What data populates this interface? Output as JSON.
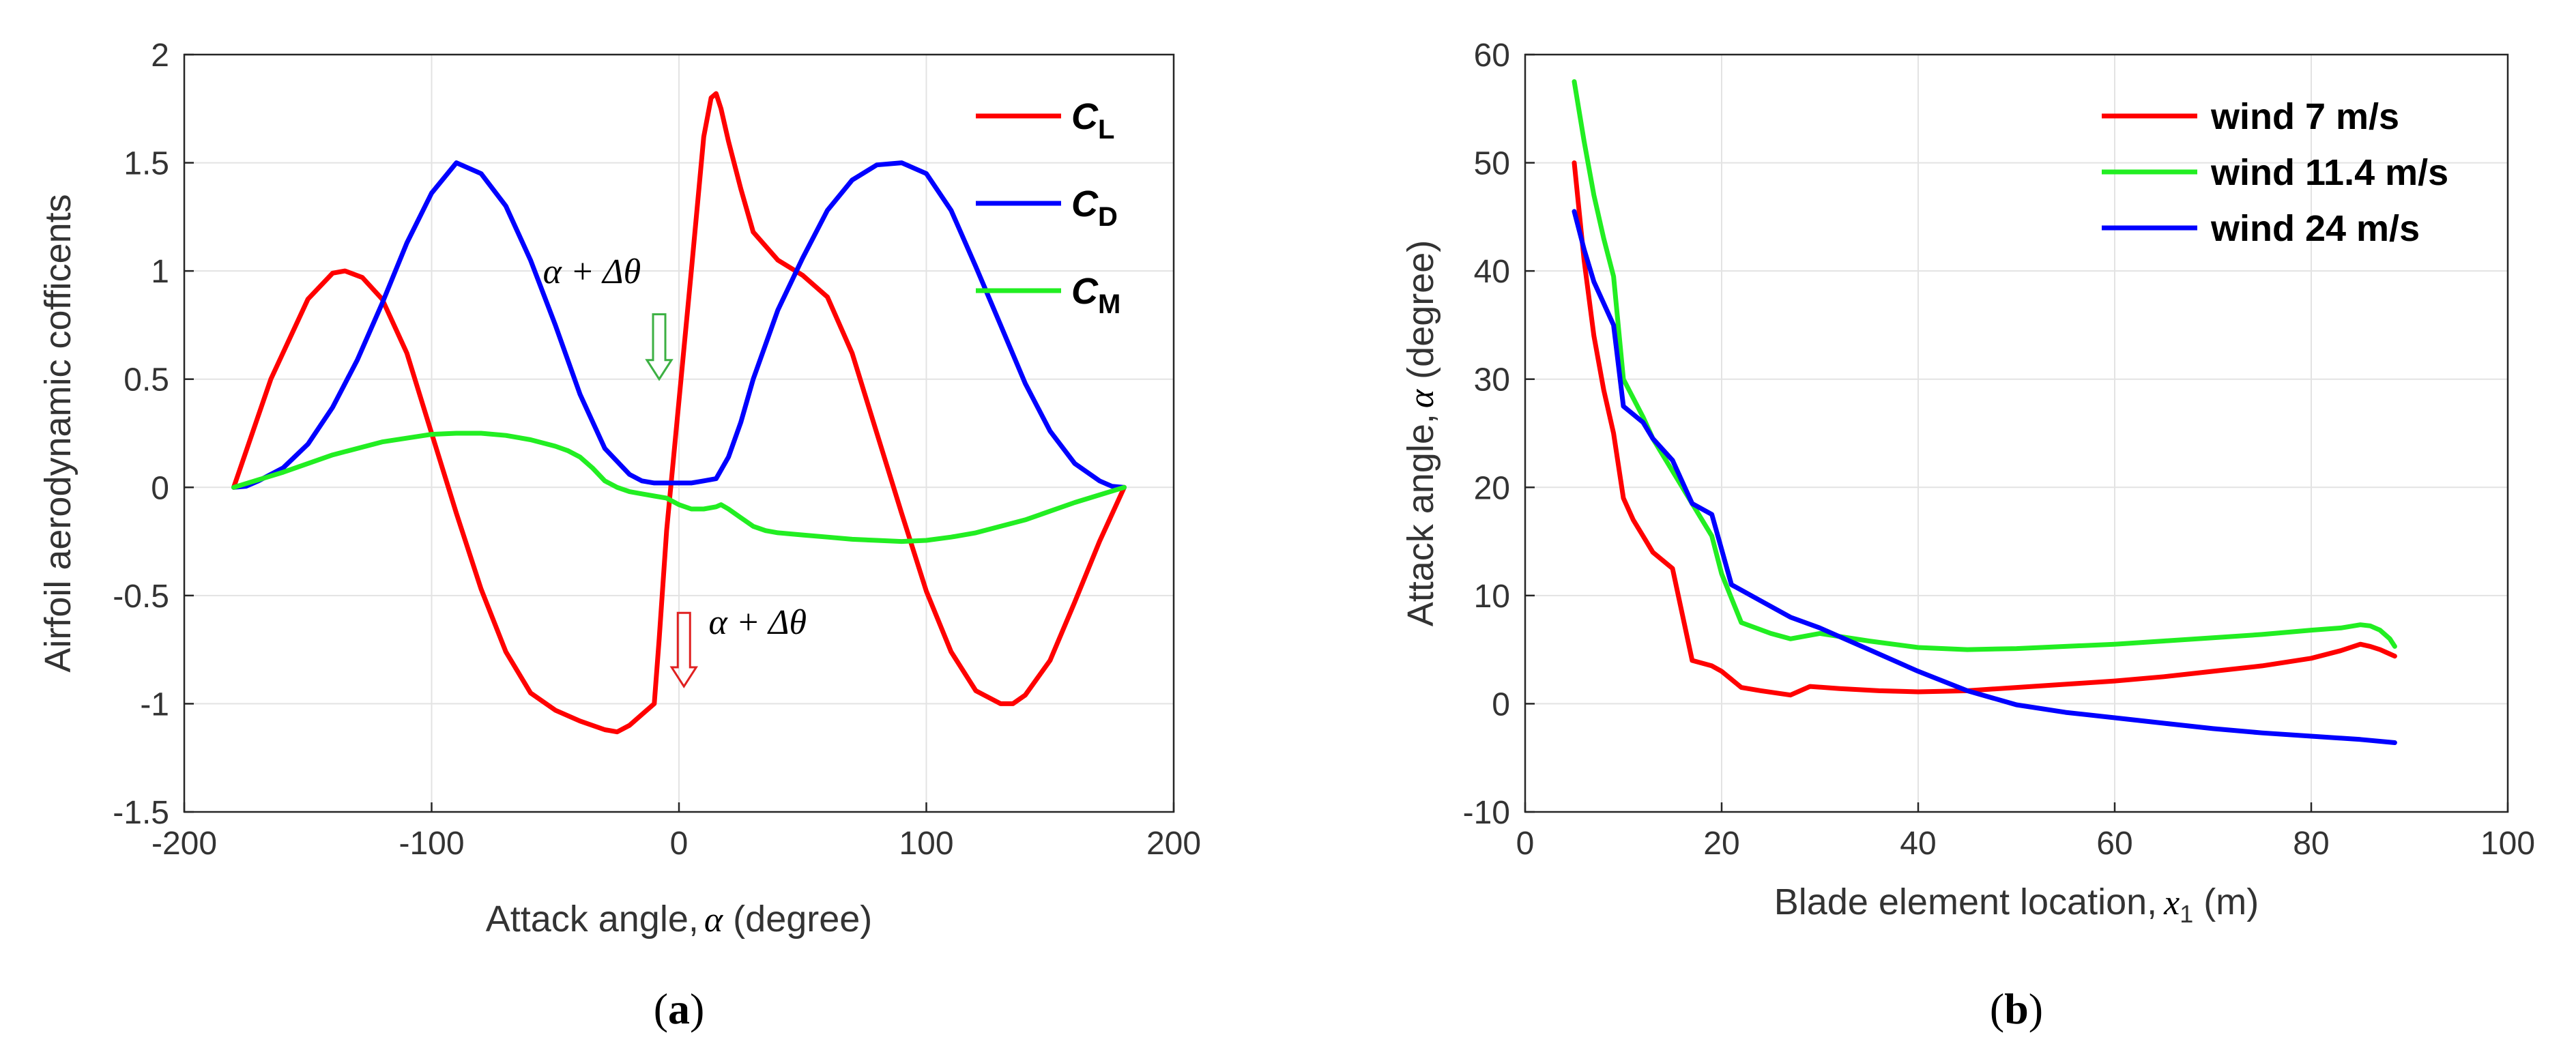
{
  "chart_data": [
    {
      "type": "line",
      "panel_label": "a",
      "xlabel_prefix": "Attack angle,",
      "xlabel_symbol": "α",
      "xlabel_suffix": " (degree)",
      "ylabel": "Airfoil aerodynamic cofficents",
      "xlim": [
        -200,
        200
      ],
      "ylim": [
        -1.5,
        2
      ],
      "xticks": [
        -200,
        -100,
        0,
        100,
        200
      ],
      "xtick_labels": [
        "-200",
        "-100",
        "0",
        "100",
        "200"
      ],
      "yticks": [
        -1.5,
        -1,
        -0.5,
        0,
        0.5,
        1,
        1.5,
        2
      ],
      "ytick_labels": [
        "-1.5",
        "-1",
        "-0.5",
        "0",
        "0.5",
        "1",
        "1.5",
        "2"
      ],
      "grid": true,
      "legend_position": "top-right",
      "annotations": [
        {
          "text": "α + Δθ",
          "x": -55,
          "y": 1.0,
          "arrow_color": "#3cb043",
          "arrow_x": -8,
          "arrow_from": 0.8,
          "arrow_to": 0.5
        },
        {
          "text": "α + Δθ",
          "x": 12,
          "y": -0.62,
          "arrow_color": "#e02020",
          "arrow_x": 2,
          "arrow_from": -0.58,
          "arrow_to": -0.92
        }
      ],
      "series": [
        {
          "name": "C",
          "subscript": "L",
          "color": "#ff0000",
          "x": [
            -180,
            -165,
            -150,
            -140,
            -135,
            -128,
            -120,
            -110,
            -100,
            -90,
            -80,
            -70,
            -60,
            -50,
            -40,
            -30,
            -25,
            -20,
            -15,
            -10,
            -8,
            -5,
            0,
            5,
            10,
            13,
            15,
            17,
            20,
            25,
            30,
            40,
            50,
            60,
            70,
            80,
            90,
            100,
            110,
            120,
            130,
            135,
            140,
            150,
            160,
            170,
            180
          ],
          "y": [
            0,
            0.5,
            0.87,
            0.99,
            1.0,
            0.97,
            0.87,
            0.62,
            0.25,
            -0.12,
            -0.47,
            -0.76,
            -0.95,
            -1.03,
            -1.08,
            -1.12,
            -1.13,
            -1.1,
            -1.05,
            -1.0,
            -0.7,
            -0.2,
            0.4,
            1.0,
            1.62,
            1.8,
            1.82,
            1.75,
            1.6,
            1.38,
            1.18,
            1.05,
            0.98,
            0.88,
            0.62,
            0.25,
            -0.12,
            -0.48,
            -0.76,
            -0.94,
            -1.0,
            -1.0,
            -0.96,
            -0.8,
            -0.53,
            -0.25,
            0
          ]
        },
        {
          "name": "C",
          "subscript": "D",
          "color": "#0000ff",
          "x": [
            -180,
            -175,
            -170,
            -160,
            -150,
            -140,
            -130,
            -120,
            -110,
            -100,
            -90,
            -80,
            -70,
            -60,
            -50,
            -40,
            -30,
            -20,
            -15,
            -10,
            -5,
            0,
            5,
            10,
            15,
            20,
            25,
            30,
            40,
            50,
            60,
            70,
            80,
            90,
            100,
            110,
            120,
            130,
            140,
            150,
            160,
            170,
            175,
            180
          ],
          "y": [
            0,
            0.005,
            0.03,
            0.09,
            0.2,
            0.37,
            0.59,
            0.85,
            1.13,
            1.36,
            1.5,
            1.45,
            1.3,
            1.05,
            0.75,
            0.43,
            0.18,
            0.06,
            0.03,
            0.02,
            0.02,
            0.02,
            0.02,
            0.03,
            0.04,
            0.14,
            0.3,
            0.5,
            0.82,
            1.06,
            1.28,
            1.42,
            1.49,
            1.5,
            1.45,
            1.28,
            1.02,
            0.75,
            0.48,
            0.26,
            0.11,
            0.03,
            0.005,
            0
          ]
        },
        {
          "name": "C",
          "subscript": "M",
          "color": "#22ee22",
          "x": [
            -180,
            -160,
            -140,
            -120,
            -100,
            -90,
            -80,
            -70,
            -60,
            -50,
            -45,
            -40,
            -35,
            -30,
            -25,
            -20,
            -15,
            -10,
            -5,
            0,
            5,
            10,
            15,
            17,
            20,
            25,
            30,
            35,
            40,
            50,
            60,
            70,
            80,
            90,
            100,
            110,
            120,
            130,
            140,
            150,
            160,
            170,
            180
          ],
          "y": [
            0,
            0.07,
            0.15,
            0.21,
            0.245,
            0.25,
            0.25,
            0.24,
            0.22,
            0.19,
            0.17,
            0.14,
            0.09,
            0.03,
            0.0,
            -0.02,
            -0.03,
            -0.04,
            -0.05,
            -0.08,
            -0.1,
            -0.1,
            -0.09,
            -0.08,
            -0.1,
            -0.14,
            -0.18,
            -0.2,
            -0.21,
            -0.22,
            -0.23,
            -0.24,
            -0.245,
            -0.25,
            -0.245,
            -0.23,
            -0.21,
            -0.18,
            -0.15,
            -0.11,
            -0.07,
            -0.035,
            0
          ]
        }
      ]
    },
    {
      "type": "line",
      "panel_label": "b",
      "xlabel_prefix": "Blade element location,",
      "xlabel_symbol": "x",
      "xlabel_sub": "1",
      "xlabel_suffix": " (m)",
      "ylabel_prefix": "Attack angle,",
      "ylabel_symbol": "α",
      "ylabel_suffix": " (degree)",
      "xlim": [
        0,
        100
      ],
      "ylim": [
        -10,
        60
      ],
      "xticks": [
        0,
        20,
        40,
        60,
        80,
        100
      ],
      "xtick_labels": [
        "0",
        "20",
        "40",
        "60",
        "80",
        "100"
      ],
      "yticks": [
        -10,
        0,
        10,
        20,
        30,
        40,
        50,
        60
      ],
      "ytick_labels": [
        "-10",
        "0",
        "10",
        "20",
        "30",
        "40",
        "50",
        "60"
      ],
      "grid": true,
      "legend_position": "top-right",
      "series": [
        {
          "name": "wind 7 m/s",
          "color": "#ff0000",
          "x": [
            5,
            6,
            7,
            8,
            9,
            10,
            11,
            12,
            13,
            15,
            17,
            19,
            20,
            22,
            24,
            27,
            29,
            32,
            36,
            40,
            45,
            50,
            55,
            60,
            65,
            70,
            75,
            80,
            83,
            85,
            86,
            87,
            88,
            88.5
          ],
          "y": [
            50,
            41,
            34,
            29,
            25,
            19,
            17,
            15.5,
            14,
            12.5,
            4,
            3.5,
            3,
            1.5,
            1.2,
            0.8,
            1.6,
            1.4,
            1.2,
            1.1,
            1.2,
            1.5,
            1.8,
            2.1,
            2.5,
            3.0,
            3.5,
            4.2,
            4.9,
            5.5,
            5.3,
            5.0,
            4.6,
            4.4
          ]
        },
        {
          "name": "wind 11.4 m/s",
          "color": "#22ee22",
          "x": [
            5,
            6,
            7,
            8,
            9,
            10,
            12,
            13,
            15,
            17,
            19,
            20,
            22,
            25,
            27,
            30,
            35,
            40,
            45,
            50,
            55,
            60,
            65,
            70,
            75,
            80,
            83,
            85,
            86,
            87,
            88,
            88.5
          ],
          "y": [
            57.5,
            52,
            47,
            43,
            39.5,
            30,
            26.5,
            24.5,
            21.5,
            18.5,
            15.5,
            12,
            7.5,
            6.5,
            6,
            6.5,
            5.8,
            5.2,
            5,
            5.1,
            5.3,
            5.5,
            5.8,
            6.1,
            6.4,
            6.8,
            7.0,
            7.3,
            7.2,
            6.8,
            6.0,
            5.3
          ]
        },
        {
          "name": "wind 24 m/s",
          "color": "#0000ff",
          "x": [
            5,
            6,
            7,
            8,
            9,
            10,
            12,
            13,
            15,
            17,
            19,
            21,
            24,
            27,
            30,
            35,
            40,
            45,
            50,
            55,
            60,
            65,
            70,
            75,
            80,
            85,
            88.5
          ],
          "y": [
            45.5,
            42,
            39,
            37,
            35,
            27.5,
            26,
            24.5,
            22.5,
            18.5,
            17.5,
            11,
            9.5,
            8,
            7,
            5,
            3,
            1.2,
            -0.1,
            -0.8,
            -1.3,
            -1.8,
            -2.3,
            -2.7,
            -3.0,
            -3.3,
            -3.6
          ]
        }
      ]
    }
  ]
}
